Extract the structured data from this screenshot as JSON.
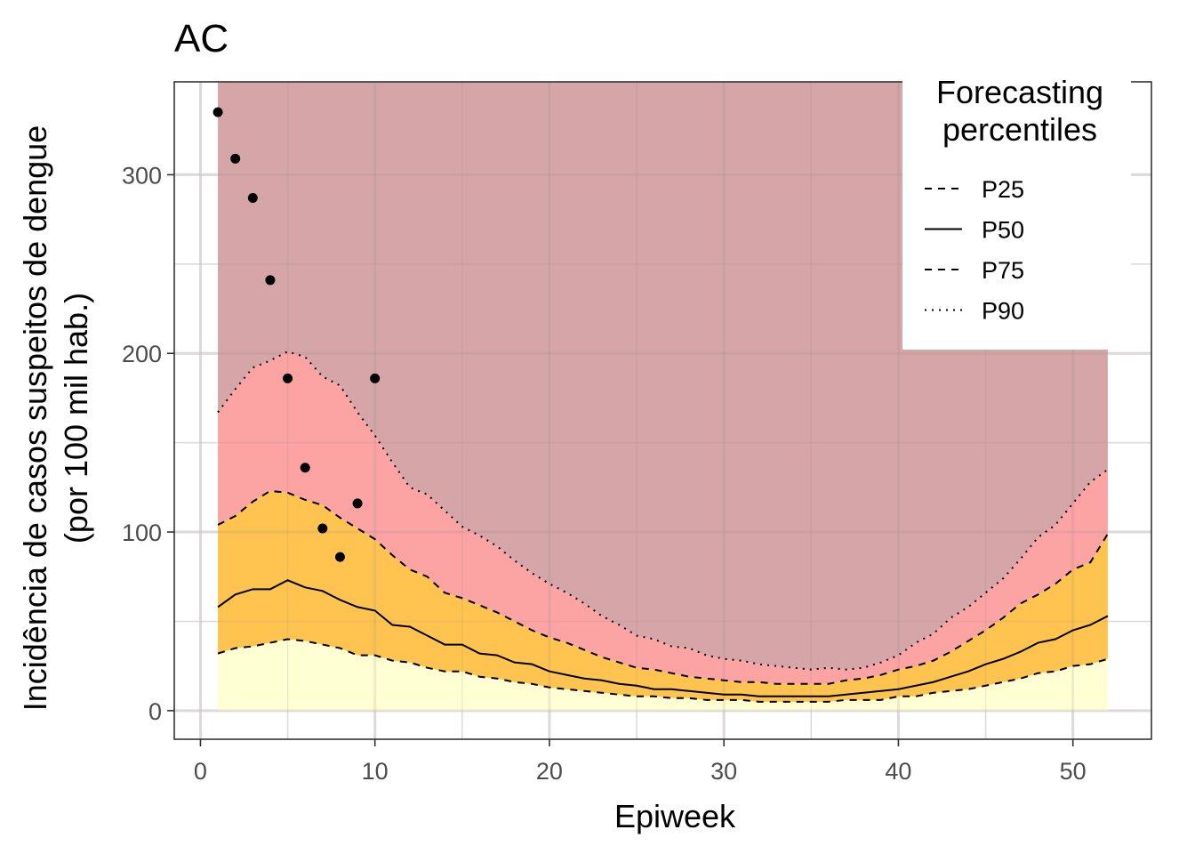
{
  "chart_data": {
    "type": "area",
    "title": "AC",
    "xlabel": "Epiweek",
    "ylabel_line1": "Incidência de casos suspeitos de dengue",
    "ylabel_line2": "(por 100 mil hab.)",
    "xlim": [
      -1.5,
      54.5
    ],
    "ylim": [
      -16,
      352
    ],
    "x_ticks": [
      0,
      10,
      20,
      30,
      40,
      50
    ],
    "y_ticks": [
      0,
      100,
      200,
      300
    ],
    "grid": true,
    "legend": {
      "title_line1": "Forecasting",
      "title_line2": "percentiles",
      "placement": "top-right",
      "entries": [
        {
          "label": "P25",
          "dash": "dashed"
        },
        {
          "label": "P50",
          "dash": "solid"
        },
        {
          "label": "P75",
          "dash": "dashed"
        },
        {
          "label": "P90",
          "dash": "dotted"
        }
      ]
    },
    "band_colors": {
      "below_p25": "#ffffd4",
      "p25_p75": "#fec44f",
      "p75_p90": "#fca3a4",
      "above_p90": "#d5a5a7"
    },
    "band_top": 352,
    "weeks": [
      1,
      2,
      3,
      4,
      5,
      6,
      7,
      8,
      9,
      10,
      11,
      12,
      13,
      14,
      15,
      16,
      17,
      18,
      19,
      20,
      21,
      22,
      23,
      24,
      25,
      26,
      27,
      28,
      29,
      30,
      31,
      32,
      33,
      34,
      35,
      36,
      37,
      38,
      39,
      40,
      41,
      42,
      43,
      44,
      45,
      46,
      47,
      48,
      49,
      50,
      51,
      52
    ],
    "series": [
      {
        "name": "P25",
        "values": [
          32,
          35,
          36,
          38,
          40,
          39,
          37,
          35,
          31,
          31,
          28,
          27,
          24,
          22,
          22,
          19,
          18,
          16,
          15,
          13,
          12,
          11,
          10,
          9,
          8,
          8,
          7,
          7,
          6,
          6,
          6,
          5,
          5,
          5,
          5,
          5,
          6,
          6,
          6,
          8,
          8,
          10,
          11,
          12,
          14,
          16,
          18,
          21,
          22,
          25,
          26,
          29
        ]
      },
      {
        "name": "P50",
        "values": [
          58,
          65,
          68,
          68,
          73,
          69,
          67,
          62,
          58,
          56,
          48,
          47,
          42,
          37,
          37,
          32,
          31,
          27,
          26,
          22,
          20,
          18,
          17,
          15,
          14,
          12,
          12,
          11,
          10,
          9,
          9,
          8,
          8,
          8,
          8,
          8,
          9,
          10,
          11,
          12,
          14,
          16,
          19,
          22,
          26,
          29,
          33,
          38,
          40,
          45,
          48,
          53
        ]
      },
      {
        "name": "P75",
        "values": [
          104,
          109,
          117,
          123,
          122,
          118,
          115,
          108,
          102,
          96,
          87,
          79,
          75,
          66,
          63,
          59,
          55,
          50,
          45,
          41,
          38,
          34,
          30,
          27,
          24,
          23,
          21,
          19,
          18,
          17,
          16,
          16,
          15,
          15,
          15,
          15,
          17,
          18,
          20,
          23,
          25,
          28,
          33,
          39,
          45,
          52,
          60,
          65,
          71,
          79,
          83,
          99
        ]
      },
      {
        "name": "P90",
        "values": [
          167,
          180,
          192,
          196,
          201,
          198,
          187,
          182,
          167,
          154,
          139,
          125,
          121,
          112,
          103,
          98,
          92,
          84,
          77,
          71,
          66,
          60,
          53,
          48,
          42,
          40,
          36,
          35,
          31,
          29,
          28,
          26,
          25,
          24,
          23,
          24,
          23,
          24,
          27,
          31,
          38,
          43,
          52,
          58,
          66,
          74,
          85,
          97,
          104,
          116,
          128,
          135
        ]
      }
    ],
    "observed": {
      "x": [
        1,
        2,
        3,
        4,
        5,
        6,
        7,
        8,
        9,
        10
      ],
      "y": [
        335,
        309,
        287,
        241,
        186,
        136,
        102,
        86,
        116,
        186
      ]
    }
  }
}
